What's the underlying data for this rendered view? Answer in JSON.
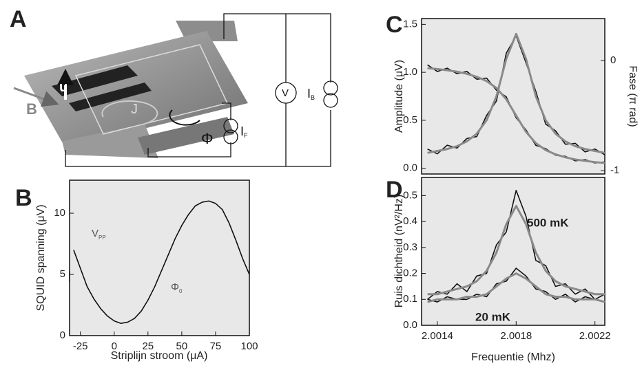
{
  "diagram": {
    "panel": "A",
    "labels": [
      {
        "text": "B"
      },
      {
        "text": "u"
      },
      {
        "text": "J"
      },
      {
        "text": "V"
      },
      {
        "text": "I",
        "sub": "B"
      },
      {
        "text": "Φ"
      },
      {
        "text": "I",
        "sub": "F"
      }
    ]
  },
  "chart_data": [
    {
      "type": "line",
      "panel": "B",
      "xlabel": "Striplijn stroom (μA)",
      "ylabel": "SQUID spanning (μV)",
      "x": [
        -30,
        -25,
        -20,
        -15,
        -10,
        -5,
        0,
        5,
        10,
        15,
        20,
        25,
        30,
        35,
        40,
        45,
        50,
        55,
        60,
        65,
        70,
        75,
        80,
        85,
        90,
        95,
        100
      ],
      "series": [
        {
          "color": "#111111",
          "values": [
            7,
            5.5,
            4,
            3,
            2.2,
            1.6,
            1.2,
            1.0,
            1.1,
            1.4,
            2.0,
            2.9,
            4.0,
            5.3,
            6.6,
            7.9,
            9.0,
            9.9,
            10.6,
            10.9,
            11.0,
            10.8,
            10.3,
            9.2,
            7.8,
            6.3,
            5.0
          ]
        }
      ],
      "xlim": [
        -33,
        100
      ],
      "ylim": [
        0,
        12.7
      ],
      "xticks": [
        -25,
        0,
        25,
        50,
        75,
        100
      ],
      "yticks": [
        0,
        5,
        10
      ],
      "annotations": [
        {
          "text": "V",
          "sub": "PP"
        },
        {
          "text": "Φ",
          "sub": "0"
        }
      ],
      "background": "#e8e8e8"
    },
    {
      "type": "line",
      "panel": "C",
      "ylabel": "Amplitude (μV)",
      "y2label": "Fase (π rad)",
      "x": [
        2.00135,
        2.0014,
        2.00145,
        2.0015,
        2.00155,
        2.0016,
        2.00165,
        2.0017,
        2.00175,
        2.0018,
        2.00185,
        2.0019,
        2.00195,
        2.002,
        2.00205,
        2.0021,
        2.00215,
        2.0022,
        2.00225
      ],
      "series": [
        {
          "color": "#111111",
          "values": [
            0.2,
            0.15,
            0.24,
            0.21,
            0.31,
            0.33,
            0.55,
            0.7,
            1.2,
            1.38,
            1.1,
            0.8,
            0.46,
            0.39,
            0.25,
            0.26,
            0.17,
            0.2,
            0.14
          ]
        },
        {
          "color": "#111111",
          "axis": "y2",
          "values": [
            -0.04,
            -0.1,
            -0.07,
            -0.12,
            -0.1,
            -0.17,
            -0.16,
            -0.27,
            -0.33,
            -0.52,
            -0.63,
            -0.77,
            -0.8,
            -0.86,
            -0.87,
            -0.91,
            -0.9,
            -0.93,
            -0.92
          ]
        },
        {
          "color": "#8a8a8a",
          "values": [
            0.16,
            0.18,
            0.2,
            0.23,
            0.28,
            0.36,
            0.5,
            0.75,
            1.14,
            1.4,
            1.14,
            0.75,
            0.5,
            0.36,
            0.28,
            0.23,
            0.2,
            0.18,
            0.16
          ]
        },
        {
          "color": "#8a8a8a",
          "axis": "y2",
          "values": [
            -0.07,
            -0.078,
            -0.089,
            -0.102,
            -0.121,
            -0.148,
            -0.187,
            -0.25,
            -0.352,
            -0.5,
            -0.648,
            -0.75,
            -0.813,
            -0.852,
            -0.879,
            -0.898,
            -0.911,
            -0.922,
            -0.93
          ]
        }
      ],
      "xlim": [
        2.00132,
        2.00225
      ],
      "ylim": [
        -0.06,
        1.56
      ],
      "y2lim": [
        -1.03,
        0.38
      ],
      "yticks": [
        {
          "value": 0,
          "label": "0.0"
        },
        0.5,
        {
          "value": 1,
          "label": "1.0"
        },
        1.5
      ],
      "y2ticks": [
        -1,
        0
      ],
      "background": "#e8e8e8"
    },
    {
      "type": "line",
      "panel": "D",
      "xlabel": "Frequentie (Mhz)",
      "ylabel": "Ruis dichtheid (nV²/Hz)",
      "x": [
        2.00135,
        2.0014,
        2.00145,
        2.0015,
        2.00155,
        2.0016,
        2.00165,
        2.0017,
        2.00175,
        2.0018,
        2.00185,
        2.0019,
        2.00195,
        2.002,
        2.00205,
        2.0021,
        2.00215,
        2.0022,
        2.00225
      ],
      "series": [
        {
          "color": "#111111",
          "values": [
            0.1,
            0.13,
            0.12,
            0.16,
            0.13,
            0.19,
            0.2,
            0.31,
            0.36,
            0.52,
            0.42,
            0.25,
            0.23,
            0.15,
            0.16,
            0.12,
            0.14,
            0.1,
            0.12
          ]
        },
        {
          "color": "#111111",
          "values": [
            0.1,
            0.09,
            0.11,
            0.1,
            0.1,
            0.12,
            0.11,
            0.16,
            0.17,
            0.22,
            0.19,
            0.14,
            0.13,
            0.1,
            0.12,
            0.09,
            0.11,
            0.1,
            0.09
          ]
        },
        {
          "name": "500 mK",
          "color": "#8a8a8a",
          "values": [
            0.12,
            0.12,
            0.13,
            0.14,
            0.15,
            0.17,
            0.21,
            0.28,
            0.39,
            0.46,
            0.39,
            0.28,
            0.21,
            0.17,
            0.15,
            0.14,
            0.13,
            0.12,
            0.12
          ]
        },
        {
          "name": "20 mK",
          "color": "#8a8a8a",
          "values": [
            0.09,
            0.1,
            0.1,
            0.1,
            0.11,
            0.11,
            0.12,
            0.15,
            0.18,
            0.2,
            0.18,
            0.15,
            0.12,
            0.11,
            0.11,
            0.1,
            0.1,
            0.1,
            0.09
          ]
        }
      ],
      "xlim": [
        2.00132,
        2.00225
      ],
      "ylim": [
        0,
        0.57
      ],
      "xticks": [
        2.0014,
        2.0018,
        2.0022
      ],
      "yticks": [
        {
          "value": 0,
          "label": "0.0"
        },
        0.1,
        0.2,
        0.3,
        0.4,
        0.5
      ],
      "background": "#e8e8e8"
    }
  ]
}
